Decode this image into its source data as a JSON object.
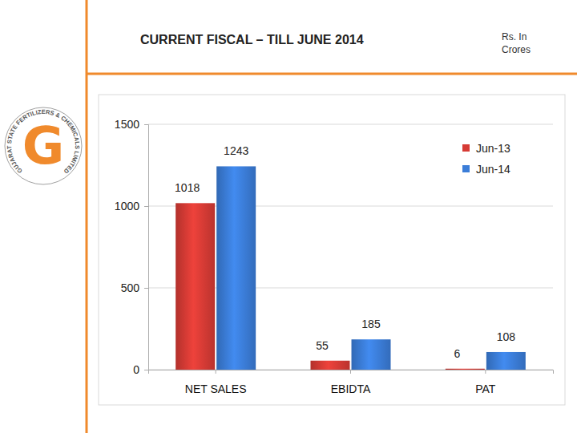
{
  "chart_data": {
    "type": "bar",
    "title": "CURRENT FISCAL – TILL JUNE 2014",
    "subtitle": "Rs. In Crores",
    "categories": [
      "NET SALES",
      "EBIDTA",
      "PAT"
    ],
    "series": [
      {
        "name": "Jun-13",
        "color": "#d63b35",
        "values": [
          1018,
          55,
          6
        ]
      },
      {
        "name": "Jun-14",
        "color": "#3b7dd8",
        "values": [
          1243,
          185,
          108
        ]
      }
    ],
    "ylim": [
      0,
      1500
    ],
    "yticks": [
      0,
      500,
      1000,
      1500
    ],
    "grid": true,
    "legend": "top-right",
    "data_labels": true
  },
  "logo": {
    "letter": "G",
    "text": "GUJARAT STATE FERTILIZERS & CHEMICALS LIMITED"
  }
}
